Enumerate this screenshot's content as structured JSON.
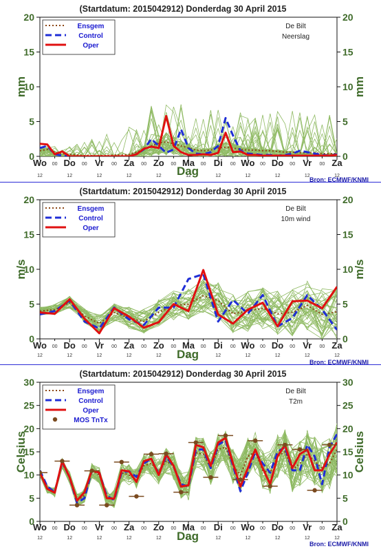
{
  "colors": {
    "ensemble": "#8fba63",
    "ensgem": "#8b4513",
    "control": "#1f2ed6",
    "oper": "#e01010",
    "mos": "#7a4a1f",
    "bron": "#1a1aa8",
    "axis_label": "#3f6b2a"
  },
  "chart_data": [
    {
      "type": "line",
      "title": "(Startdatum: 2015042912)   Donderdag 30 April     2015",
      "station": "De Bilt",
      "variable": "Neerslag",
      "ylabel": "mm",
      "xlabel": "Dag",
      "ylim": [
        0,
        20
      ],
      "yticks": [
        "0",
        "5",
        "10",
        "15",
        "20"
      ],
      "xlim": [
        0,
        40
      ],
      "day_labels": [
        "Wo",
        "Do",
        "Vr",
        "Za",
        "Zo",
        "Ma",
        "Di",
        "Wo",
        "Do",
        "Vr",
        "Za"
      ],
      "sub_ticks": [
        "12",
        "00"
      ],
      "legend": [
        "Ensgem",
        "Control",
        "Oper"
      ],
      "legend_position": "top-left",
      "source": "Bron: ECMWF/KNMI",
      "x": [
        0,
        1,
        2,
        3,
        4,
        5,
        6,
        7,
        8,
        9,
        10,
        11,
        12,
        13,
        14,
        15,
        16,
        17,
        18,
        19,
        20,
        21,
        22,
        23,
        24,
        25,
        26,
        27,
        28,
        29,
        30,
        31,
        32,
        33,
        34,
        35,
        36,
        37,
        38,
        39,
        40
      ],
      "series": [
        {
          "name": "Ensgem",
          "values": [
            0.8,
            1.0,
            0.6,
            0.4,
            0.3,
            0.2,
            0.1,
            0.1,
            0.1,
            0.1,
            0.2,
            0.2,
            0.3,
            0.6,
            1.0,
            1.5,
            1.9,
            2.1,
            1.8,
            1.5,
            1.2,
            0.9,
            0.8,
            0.9,
            1.2,
            1.3,
            1.2,
            1.0,
            0.9,
            0.9,
            0.8,
            0.8,
            0.7,
            0.6,
            0.6,
            0.5,
            0.5,
            0.5,
            0.4,
            0.4,
            0.4
          ]
        },
        {
          "name": "Control",
          "values": [
            1.2,
            1.5,
            0.3,
            0.1,
            0.0,
            0.0,
            0.0,
            0.0,
            0.0,
            0.0,
            0.0,
            0.0,
            0.0,
            0.3,
            1.0,
            2.5,
            1.5,
            0.5,
            1.0,
            3.9,
            1.2,
            0.4,
            0.3,
            0.6,
            1.5,
            5.5,
            3.0,
            0.8,
            0.4,
            0.3,
            0.2,
            0.2,
            0.1,
            0.2,
            0.4,
            0.8,
            0.6,
            0.4,
            0.2,
            0.1,
            0.3
          ]
        },
        {
          "name": "Oper",
          "values": [
            1.8,
            1.7,
            0.3,
            0.7,
            0.0,
            0.0,
            0.0,
            0.0,
            0.0,
            0.0,
            0.0,
            0.0,
            0.0,
            0.3,
            1.1,
            1.4,
            1.2,
            5.8,
            1.5,
            0.6,
            0.2,
            0.2,
            0.3,
            0.2,
            0.5,
            3.4,
            0.6,
            0.7,
            0.2,
            0.2,
            0.1,
            0.1,
            0.1,
            0.1,
            0.1,
            0.1,
            0.1,
            0.1,
            0.1,
            0.1,
            0.2
          ]
        }
      ]
    },
    {
      "type": "line",
      "title": "(Startdatum: 2015042912)   Donderdag 30 April     2015",
      "station": "De Bilt",
      "variable": "10m wind",
      "ylabel": "m/s",
      "xlabel": "Dag",
      "ylim": [
        0,
        20
      ],
      "yticks": [
        "0",
        "5",
        "10",
        "15",
        "20"
      ],
      "xlim": [
        0,
        40
      ],
      "day_labels": [
        "Wo",
        "Do",
        "Vr",
        "Za",
        "Zo",
        "Ma",
        "Di",
        "Wo",
        "Do",
        "Vr",
        "Za"
      ],
      "sub_ticks": [
        "12",
        "00"
      ],
      "legend": [
        "Ensgem",
        "Control",
        "Oper"
      ],
      "legend_position": "top-left",
      "source": "Bron: ECMWF/KNMI",
      "x": [
        0,
        2,
        4,
        6,
        8,
        10,
        12,
        14,
        16,
        18,
        20,
        22,
        24,
        26,
        28,
        30,
        32,
        34,
        36,
        38,
        40
      ],
      "series": [
        {
          "name": "Ensgem",
          "values": [
            4.0,
            4.2,
            5.2,
            3.3,
            2.2,
            3.8,
            3.0,
            2.5,
            3.8,
            4.8,
            5.0,
            6.2,
            5.5,
            3.6,
            4.0,
            4.4,
            3.6,
            3.8,
            4.8,
            3.5,
            3.9
          ]
        },
        {
          "name": "Control",
          "values": [
            3.5,
            4.0,
            5.5,
            2.5,
            1.5,
            4.5,
            2.8,
            2.0,
            4.5,
            4.5,
            8.6,
            9.3,
            2.5,
            5.6,
            3.6,
            6.3,
            1.8,
            3.0,
            6.3,
            4.2,
            1.3
          ]
        },
        {
          "name": "Oper",
          "values": [
            3.8,
            3.6,
            5.7,
            2.9,
            0.8,
            4.4,
            3.2,
            1.6,
            2.4,
            5.0,
            4.0,
            9.9,
            3.5,
            2.2,
            4.2,
            5.2,
            1.8,
            5.4,
            5.5,
            4.4,
            7.5
          ]
        }
      ]
    },
    {
      "type": "line",
      "title": "(Startdatum: 2015042912)   Donderdag 30 April     2015",
      "station": "De Bilt",
      "variable": "T2m",
      "ylabel": "Celsius",
      "xlabel": "Dag",
      "ylim": [
        0,
        30
      ],
      "yticks": [
        "0",
        "5",
        "10",
        "15",
        "20",
        "25",
        "30"
      ],
      "xlim": [
        0,
        40
      ],
      "day_labels": [
        "Wo",
        "Do",
        "Vr",
        "Za",
        "Zo",
        "Ma",
        "Di",
        "Wo",
        "Do",
        "Vr",
        "Za"
      ],
      "sub_ticks": [
        "12",
        "00"
      ],
      "legend": [
        "Ensgem",
        "Control",
        "Oper",
        "MOS TnTx"
      ],
      "legend_position": "top-left",
      "source": "Bron: ECMWF/KNMI",
      "x": [
        0,
        1,
        2,
        3,
        4,
        5,
        6,
        7,
        8,
        9,
        10,
        11,
        12,
        13,
        14,
        15,
        16,
        17,
        18,
        19,
        20,
        21,
        22,
        23,
        24,
        25,
        26,
        27,
        28,
        29,
        30,
        31,
        32,
        33,
        34,
        35,
        36,
        37,
        38,
        39,
        40
      ],
      "series": [
        {
          "name": "Ensgem",
          "values": [
            10.5,
            7.0,
            6.3,
            12.5,
            9.5,
            4.5,
            5.6,
            11.0,
            10.0,
            5.0,
            4.8,
            10.5,
            10.0,
            9.0,
            12.0,
            12.5,
            10.8,
            13.0,
            12.0,
            8.0,
            7.5,
            14.8,
            14.5,
            11.5,
            15.5,
            16.0,
            12.0,
            10.0,
            14.0,
            15.0,
            11.0,
            10.5,
            14.0,
            15.0,
            11.0,
            12.5,
            14.5,
            13.0,
            11.5,
            12.5,
            15.5
          ]
        },
        {
          "name": "Control",
          "values": [
            11.0,
            7.5,
            6.3,
            12.8,
            9.5,
            4.0,
            5.0,
            11.0,
            10.5,
            5.5,
            4.6,
            10.6,
            10.8,
            9.6,
            12.5,
            13.5,
            10.2,
            14.0,
            11.8,
            8.0,
            7.5,
            15.5,
            15.5,
            11.5,
            16.5,
            17.5,
            12.0,
            6.5,
            10.5,
            15.0,
            12.5,
            10.5,
            15.0,
            16.0,
            11.0,
            11.0,
            16.5,
            14.0,
            8.0,
            16.0,
            18.8
          ]
        },
        {
          "name": "Oper",
          "values": [
            10.5,
            7.0,
            6.2,
            13.0,
            9.5,
            4.5,
            6.3,
            11.0,
            10.5,
            5.0,
            4.9,
            11.0,
            10.8,
            8.5,
            13.0,
            13.5,
            10.0,
            14.5,
            12.0,
            7.5,
            7.8,
            16.5,
            16.0,
            12.0,
            17.0,
            18.0,
            12.5,
            7.5,
            11.5,
            15.5,
            11.5,
            8.0,
            14.0,
            16.5,
            11.5,
            14.5,
            15.5,
            11.0,
            11.0,
            14.5,
            17.0
          ]
        },
        {
          "name": "MOS TnTx",
          "x": [
            0,
            3,
            5,
            7,
            9,
            11,
            13,
            15,
            17,
            19,
            21,
            23,
            25,
            27,
            29,
            31,
            33,
            35,
            37,
            39
          ],
          "values": [
            10.5,
            13.0,
            3.5,
            10.9,
            3.5,
            12.8,
            5.4,
            14.5,
            14.6,
            6.3,
            17.0,
            9.5,
            18.5,
            9.0,
            17.4,
            7.6,
            16.5,
            15.5,
            6.7,
            16.5
          ]
        }
      ]
    }
  ]
}
